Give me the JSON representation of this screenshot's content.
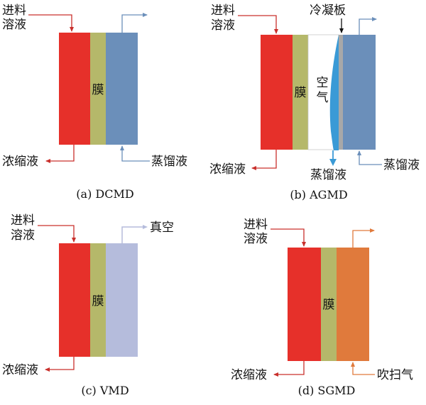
{
  "labels": {
    "feed": [
      "进料",
      "溶液"
    ],
    "concentrate": "浓缩液",
    "distillate": "蒸馏液",
    "membrane": "膜",
    "air": [
      "空",
      "气"
    ],
    "condensing_plate": "冷凝板",
    "vacuum": "真空",
    "sweep_gas": "吹扫气"
  },
  "captions": {
    "a": "(a) DCMD",
    "b": "(b) AGMD",
    "c": "(c) VMD",
    "d": "(d) SGMD"
  },
  "colors": {
    "feed": "#e6302a",
    "membrane": "#b5b86a",
    "cold": "#6b8fba",
    "vacuum": "#b5bcdc",
    "sweep": "#e07a3c",
    "condensate": "#3a9ad6",
    "plate": "#a8a8a8",
    "feed_arrow": "#c9302c",
    "cold_arrow": "#6b8fba",
    "sweep_arrow": "#e07a3c"
  }
}
